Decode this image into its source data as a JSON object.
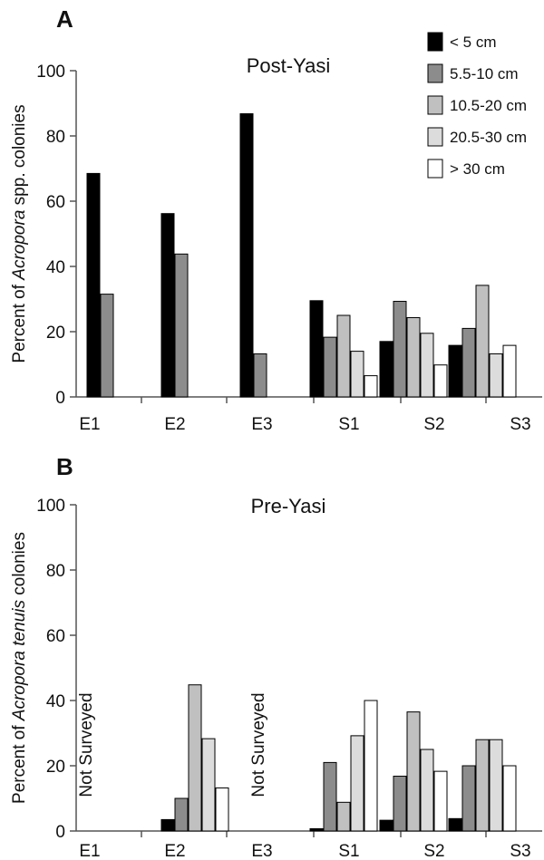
{
  "chart_data": [
    {
      "type": "bar",
      "panel_label": "A",
      "title": "Post-Yasi",
      "ylabel_parts": [
        "Percent of ",
        "Acropora",
        " spp. colonies"
      ],
      "categories": [
        "E1",
        "E2",
        "E3",
        "S1",
        "S2",
        "S3"
      ],
      "ylim": [
        0,
        100
      ],
      "yticks": [
        "0",
        "20",
        "40",
        "60",
        "80",
        "100"
      ],
      "series": [
        {
          "name": "< 5 cm",
          "color": "#000000",
          "values": [
            68.5,
            56.2,
            86.8,
            29.5,
            17.0,
            15.8
          ]
        },
        {
          "name": "5.5-10 cm",
          "color": "#8c8c8c",
          "values": [
            31.5,
            43.8,
            13.2,
            18.3,
            29.3,
            21.0
          ]
        },
        {
          "name": "10.5-20 cm",
          "color": "#c0c0c0",
          "values": [
            0,
            0,
            0,
            25.0,
            24.3,
            34.2
          ]
        },
        {
          "name": "20.5-30 cm",
          "color": "#dcdcdc",
          "values": [
            0,
            0,
            0,
            14.0,
            19.5,
            13.2
          ]
        },
        {
          "name": "> 30 cm",
          "color": "#ffffff",
          "values": [
            0,
            0,
            0,
            6.5,
            9.8,
            15.8
          ]
        }
      ],
      "legend": "top-right"
    },
    {
      "type": "bar",
      "panel_label": "B",
      "title": "Pre-Yasi",
      "ylabel_parts": [
        "Percent of ",
        "Acropora tenuis",
        " colonies"
      ],
      "categories": [
        "E1",
        "E2",
        "E3",
        "S1",
        "S2",
        "S3"
      ],
      "ylim": [
        0,
        100
      ],
      "yticks": [
        "0",
        "20",
        "40",
        "60",
        "80",
        "100"
      ],
      "series": [
        {
          "name": "< 5 cm",
          "color": "#000000",
          "values": [
            null,
            3.5,
            null,
            0.7,
            3.3,
            3.8
          ]
        },
        {
          "name": "5.5-10 cm",
          "color": "#8c8c8c",
          "values": [
            null,
            10.0,
            null,
            21.0,
            16.8,
            20.0
          ]
        },
        {
          "name": "10.5-20 cm",
          "color": "#c0c0c0",
          "values": [
            null,
            44.8,
            null,
            8.8,
            36.5,
            28.0
          ]
        },
        {
          "name": "20.5-30 cm",
          "color": "#dcdcdc",
          "values": [
            null,
            28.3,
            null,
            29.2,
            25.0,
            28.0
          ]
        },
        {
          "name": "> 30 cm",
          "color": "#ffffff",
          "values": [
            null,
            13.2,
            null,
            40.0,
            18.3,
            20.0
          ]
        }
      ],
      "annotations": [
        {
          "category": "E1",
          "text": "Not Surveyed"
        },
        {
          "category": "E3",
          "text": "Not Surveyed"
        }
      ]
    }
  ]
}
